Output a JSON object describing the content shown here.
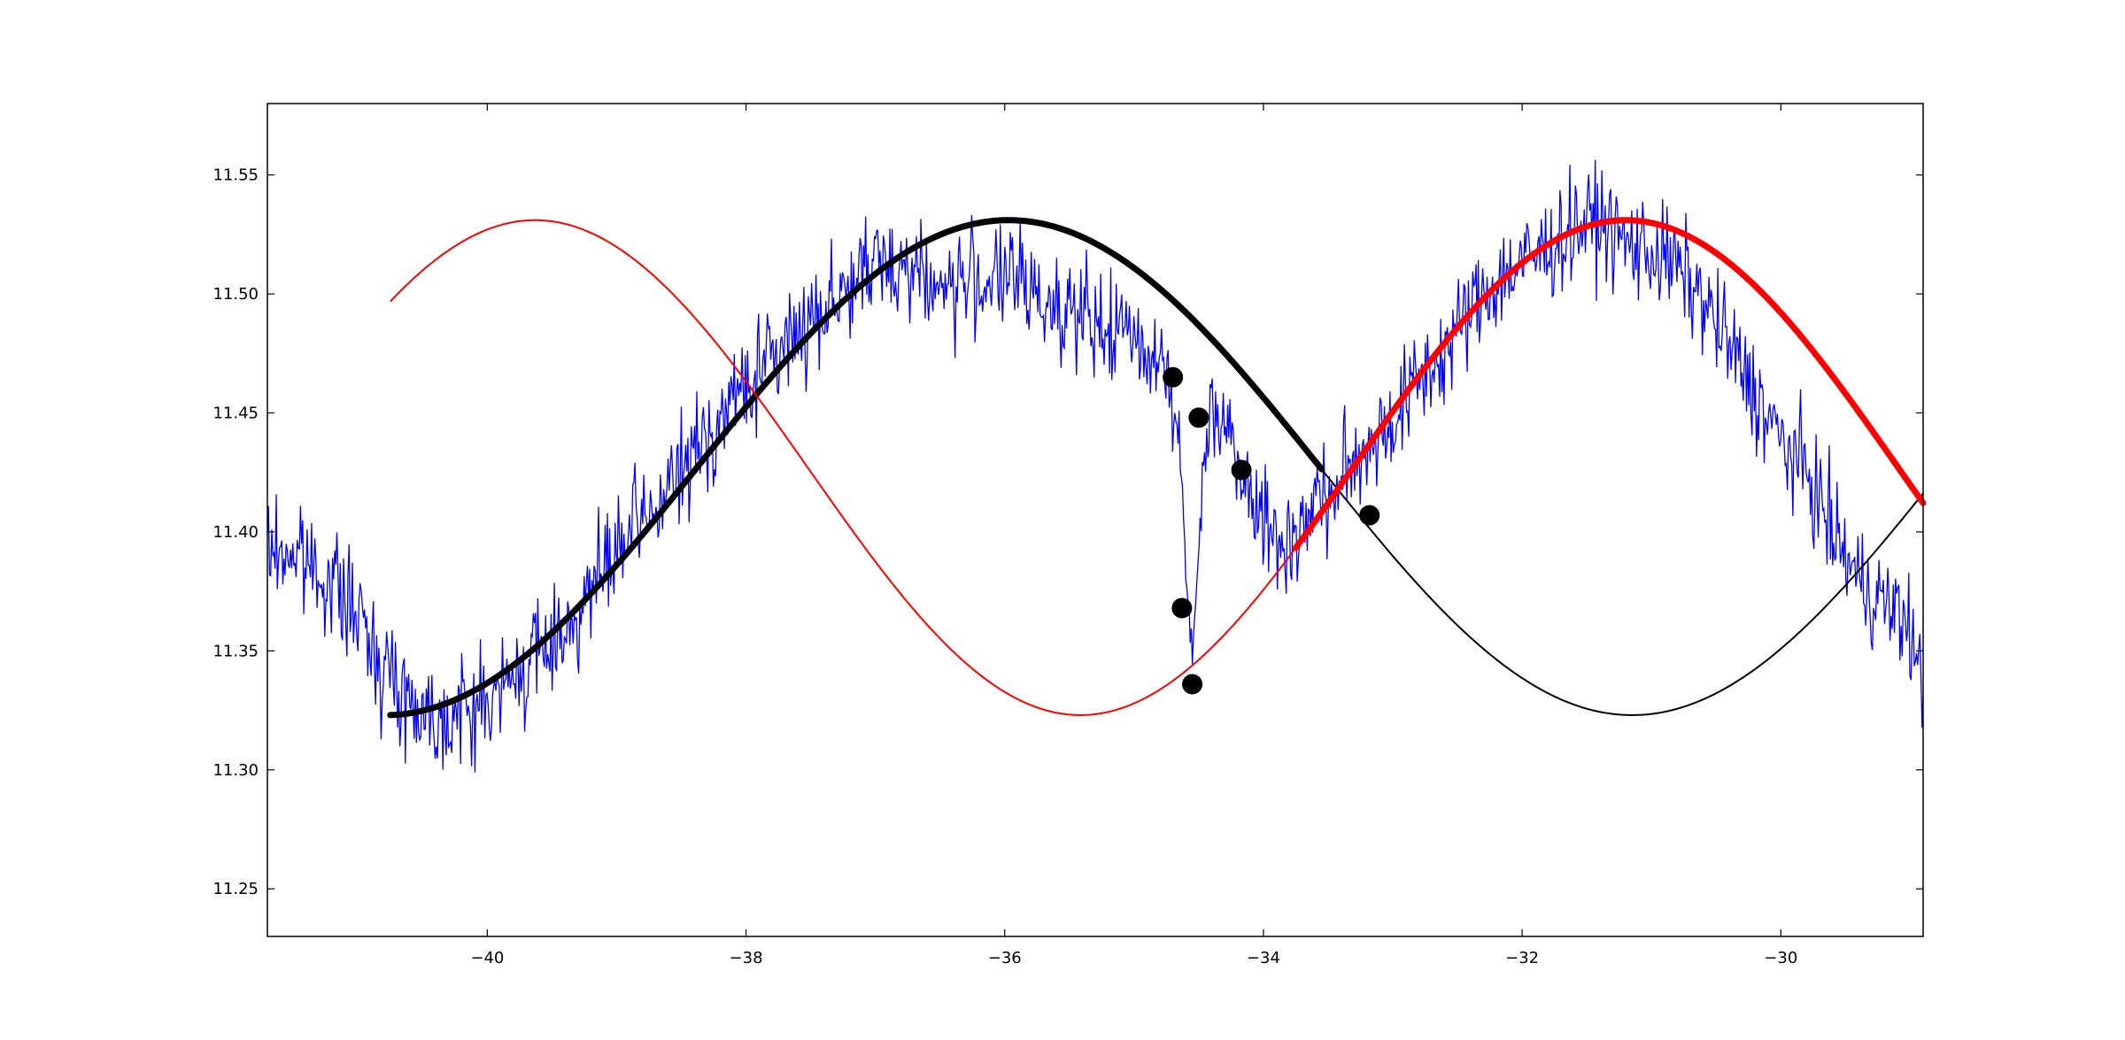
{
  "chart_data": {
    "type": "line",
    "title": "",
    "xlabel": "",
    "ylabel": "",
    "xlim": [
      -41.7,
      -28.9
    ],
    "ylim": [
      11.23,
      11.58
    ],
    "xticks": [
      {
        "value": -40,
        "label": "−40"
      },
      {
        "value": -38,
        "label": "−38"
      },
      {
        "value": -36,
        "label": "−36"
      },
      {
        "value": -34,
        "label": "−34"
      },
      {
        "value": -32,
        "label": "−32"
      },
      {
        "value": -30,
        "label": "−30"
      }
    ],
    "yticks": [
      {
        "value": 11.25,
        "label": "11.25"
      },
      {
        "value": 11.3,
        "label": "11.30"
      },
      {
        "value": 11.35,
        "label": "11.35"
      },
      {
        "value": 11.4,
        "label": "11.40"
      },
      {
        "value": 11.45,
        "label": "11.45"
      },
      {
        "value": 11.5,
        "label": "11.50"
      },
      {
        "value": 11.55,
        "label": "11.55"
      }
    ],
    "grid": false,
    "legend": "none",
    "series": [
      {
        "kind": "noisy-data",
        "color": "#0000ff",
        "x": [
          -41.7,
          -41.5,
          -41.3,
          -41.1,
          -40.9,
          -40.7,
          -40.5,
          -40.3,
          -40.1,
          -39.9,
          -39.7,
          -39.5,
          -39.3,
          -39.1,
          -38.9,
          -38.7,
          -38.5,
          -38.3,
          -38.1,
          -37.9,
          -37.7,
          -37.5,
          -37.3,
          -37.1,
          -36.9,
          -36.7,
          -36.5,
          -36.3,
          -36.1,
          -35.9,
          -35.7,
          -35.5,
          -35.3,
          -35.1,
          -34.9,
          -34.75,
          -34.65,
          -34.6,
          -34.55,
          -34.5,
          -34.45,
          -34.4,
          -34.3,
          -34.2,
          -34.1,
          -34.0,
          -33.9,
          -33.8,
          -33.7,
          -33.6,
          -33.5,
          -33.4,
          -33.3,
          -33.2,
          -33.0,
          -32.8,
          -32.6,
          -32.4,
          -32.2,
          -32.0,
          -31.8,
          -31.6,
          -31.4,
          -31.2,
          -31.0,
          -30.8,
          -30.6,
          -30.4,
          -30.2,
          -30.0,
          -29.8,
          -29.6,
          -29.4,
          -29.2,
          -29.0,
          -28.9
        ],
        "values": [
          11.392,
          11.391,
          11.384,
          11.372,
          11.354,
          11.335,
          11.325,
          11.322,
          11.326,
          11.332,
          11.344,
          11.354,
          11.366,
          11.383,
          11.398,
          11.41,
          11.425,
          11.44,
          11.455,
          11.468,
          11.478,
          11.49,
          11.5,
          11.507,
          11.514,
          11.511,
          11.502,
          11.505,
          11.507,
          11.505,
          11.497,
          11.495,
          11.484,
          11.485,
          11.478,
          11.47,
          11.44,
          11.38,
          11.35,
          11.39,
          11.44,
          11.457,
          11.445,
          11.434,
          11.421,
          11.405,
          11.395,
          11.397,
          11.401,
          11.415,
          11.412,
          11.422,
          11.428,
          11.437,
          11.446,
          11.464,
          11.475,
          11.493,
          11.505,
          11.513,
          11.519,
          11.528,
          11.531,
          11.521,
          11.518,
          11.511,
          11.497,
          11.478,
          11.458,
          11.438,
          11.425,
          11.4,
          11.38,
          11.37,
          11.36,
          11.33
        ]
      },
      {
        "kind": "fit-primary",
        "color": "#000000",
        "amplitude": 0.104,
        "offset": 11.427,
        "period": 9.64,
        "peak_x": -35.97,
        "x_start": -40.75,
        "x_end": -28.9,
        "thick_until": -33.55
      },
      {
        "kind": "fit-shifted",
        "color": "#ff0000",
        "amplitude": 0.104,
        "offset": 11.427,
        "period": 8.43,
        "peak_x": -31.2,
        "x_start": -40.75,
        "x_end": -28.9,
        "thick_from": -33.75
      }
    ],
    "markers": [
      {
        "x": -34.7,
        "y": 11.465
      },
      {
        "x": -34.5,
        "y": 11.448
      },
      {
        "x": -34.17,
        "y": 11.426
      },
      {
        "x": -34.63,
        "y": 11.368
      },
      {
        "x": -34.55,
        "y": 11.336
      },
      {
        "x": -33.18,
        "y": 11.407
      }
    ]
  }
}
